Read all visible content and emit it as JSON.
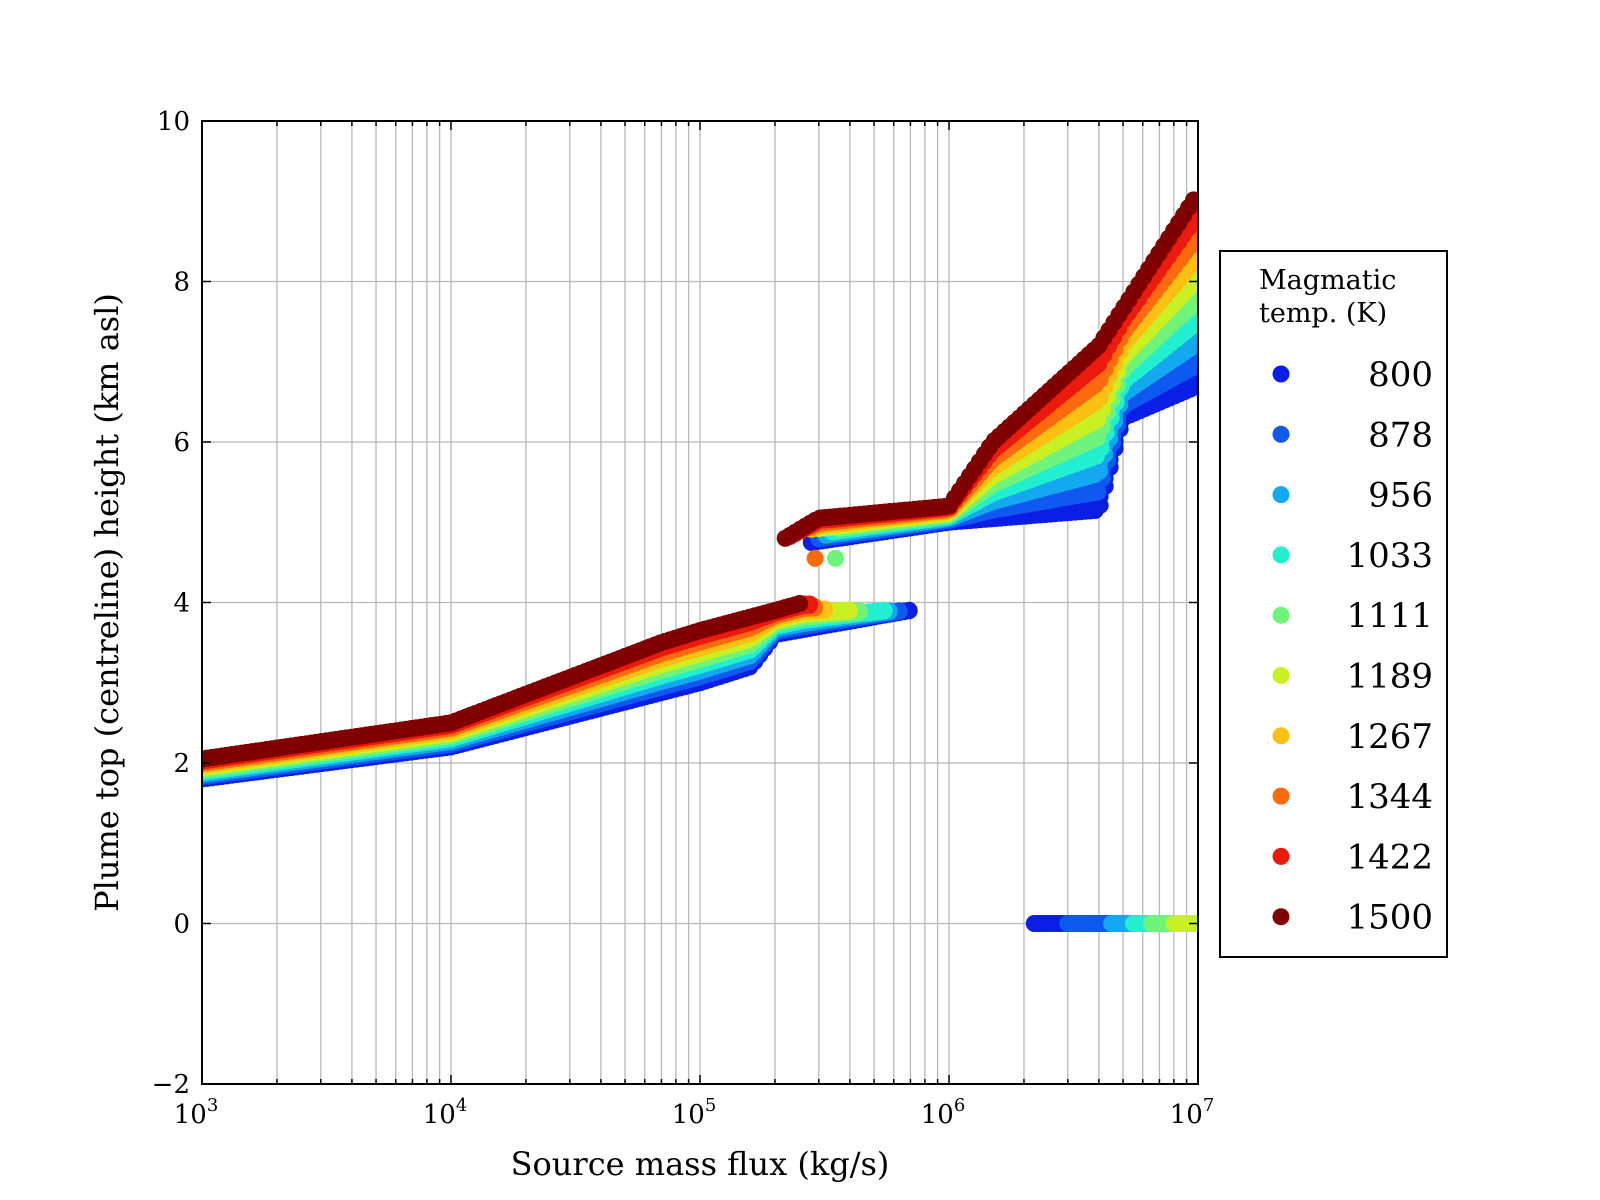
{
  "chart_data": {
    "type": "scatter",
    "xlabel": "Source mass flux (kg/s)",
    "ylabel": "Plume top (centreline) height (km asl)",
    "xscale": "log",
    "xlim": [
      1000,
      10000000
    ],
    "ylim": [
      -2,
      10
    ],
    "grid": true,
    "x_ticks": [
      {
        "base": "10",
        "exp": "3",
        "value": 1000
      },
      {
        "base": "10",
        "exp": "4",
        "value": 10000
      },
      {
        "base": "10",
        "exp": "5",
        "value": 100000
      },
      {
        "base": "10",
        "exp": "6",
        "value": 1000000
      },
      {
        "base": "10",
        "exp": "7",
        "value": 10000000
      }
    ],
    "y_ticks": [
      "−2",
      "0",
      "2",
      "4",
      "6",
      "8",
      "10"
    ],
    "legend": {
      "title_line1": "Magmatic",
      "title_line2": "temp. (K)",
      "placement": "right"
    },
    "series": [
      {
        "name": "800",
        "color": "#0a1ee6",
        "low_offset": 0.0
      },
      {
        "name": "878",
        "color": "#0f58f0",
        "low_offset": 0.06
      },
      {
        "name": "956",
        "color": "#14a8f0",
        "low_offset": 0.12
      },
      {
        "name": "1033",
        "color": "#22eed0",
        "low_offset": 0.18
      },
      {
        "name": "1111",
        "color": "#6ef47a",
        "low_offset": 0.24
      },
      {
        "name": "1189",
        "color": "#c8f022",
        "low_offset": 0.3
      },
      {
        "name": "1267",
        "color": "#fcc012",
        "low_offset": 0.36
      },
      {
        "name": "1344",
        "color": "#fc6a0e",
        "low_offset": 0.42
      },
      {
        "name": "1422",
        "color": "#ec1a0c",
        "low_offset": 0.48
      },
      {
        "name": "1500",
        "color": "#800000",
        "low_offset": 0.54
      }
    ],
    "segments": [
      {
        "x_start": 1000,
        "x_end_by_series": [
          700000,
          650000,
          600000,
          550000,
          450000,
          400000,
          330000,
          300000,
          280000,
          260000
        ],
        "y_lowest": [
          [
            1000,
            1.8
          ],
          [
            10000,
            2.2
          ],
          [
            100000,
            3.0
          ],
          [
            160000,
            3.2
          ],
          [
            200000,
            3.6
          ],
          [
            700000,
            3.9
          ]
        ],
        "y_highest": [
          [
            1000,
            2.05
          ],
          [
            10000,
            2.5
          ],
          [
            70000,
            3.5
          ],
          [
            100000,
            3.65
          ],
          [
            200000,
            3.9
          ],
          [
            260000,
            4.0
          ]
        ]
      },
      {
        "x_start_by_series": [
          280000,
          300000,
          320000,
          340000,
          360000,
          300000,
          280000,
          280000,
          230000,
          220000
        ],
        "x_end": 10000000,
        "y_lowest": [
          [
            220000,
            4.7
          ],
          [
            1000000,
            5.0
          ],
          [
            4000000,
            5.15
          ],
          [
            5000000,
            6.3
          ],
          [
            10000000,
            6.7
          ]
        ],
        "y_highest": [
          [
            220000,
            4.8
          ],
          [
            300000,
            5.05
          ],
          [
            1000000,
            5.2
          ],
          [
            1500000,
            6.0
          ],
          [
            4000000,
            7.2
          ],
          [
            10000000,
            9.1
          ]
        ]
      },
      {
        "x_start": 2200000,
        "x_end_by_series": [
          10000000,
          10000000,
          10000000,
          10000000,
          10000000,
          10000000
        ],
        "y_constant": 0.0,
        "visible_series": [
          "800",
          "878",
          "956",
          "1033",
          "1111",
          "1189"
        ],
        "x_start_by_series": [
          2200000,
          3000000,
          4500000,
          5500000,
          6500000,
          8000000
        ]
      }
    ],
    "isolated_points": [
      {
        "series": "1344",
        "x": 290000,
        "y": 4.55
      },
      {
        "series": "1111",
        "x": 350000,
        "y": 4.55
      }
    ]
  }
}
